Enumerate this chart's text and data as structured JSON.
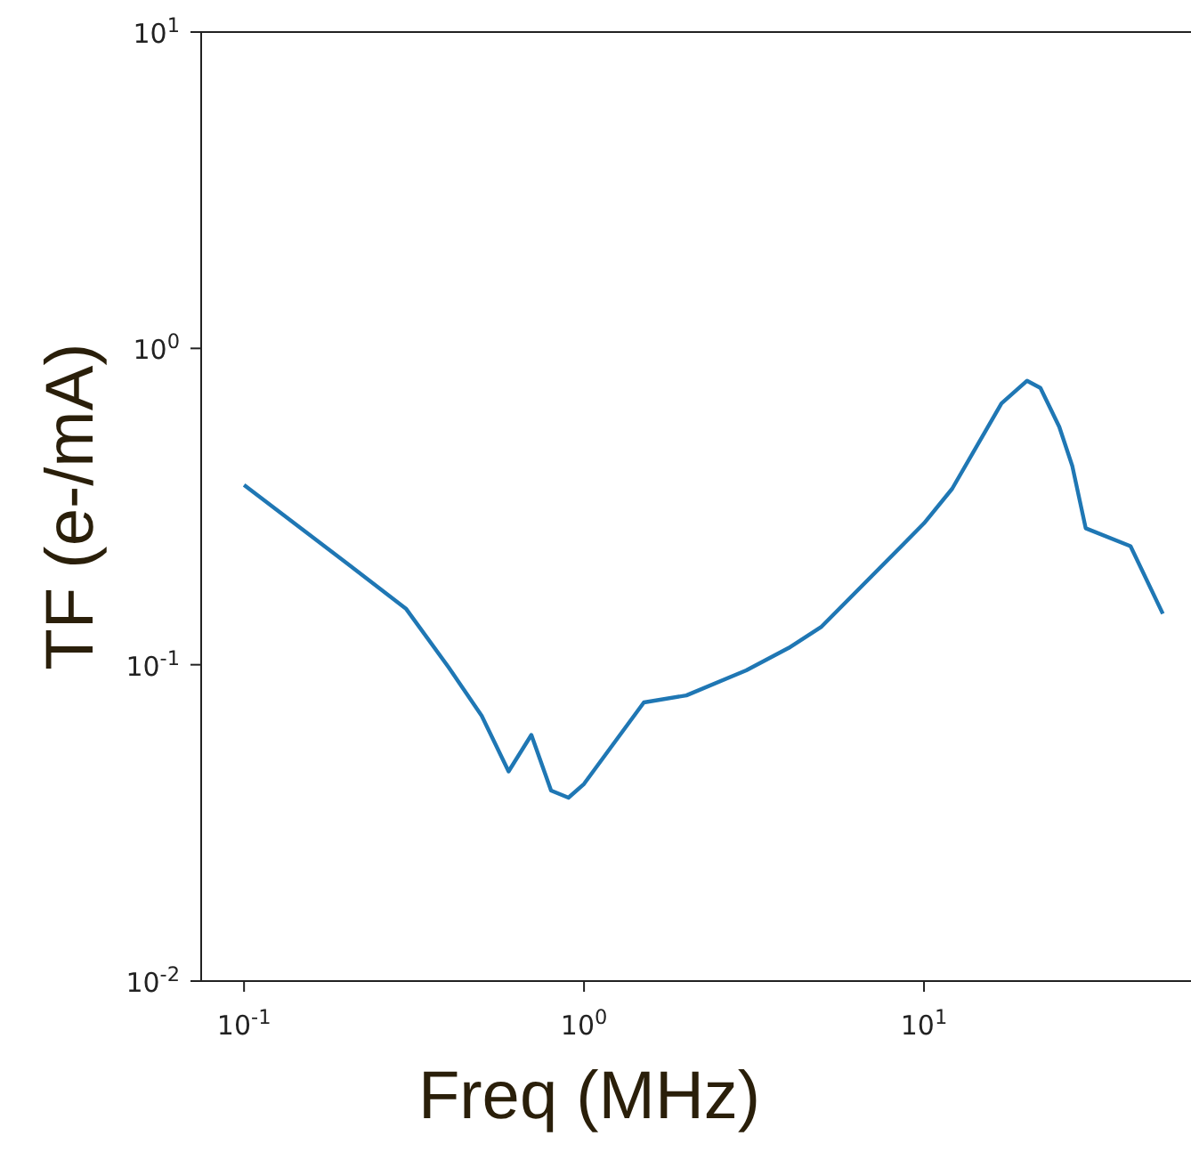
{
  "chart_data": {
    "type": "line",
    "xlabel": "Freq (MHz)",
    "ylabel": "TF (e-/mA)",
    "log": "xy",
    "grid": false,
    "marker": "none",
    "xlim": [
      0.0748,
      61
    ],
    "ylim": [
      0.01,
      10
    ],
    "xticks": [
      {
        "value": 0.1,
        "label": "10$^{-1}$"
      },
      {
        "value": 1,
        "label": "10$^{0}$"
      },
      {
        "value": 10,
        "label": "10$^{1}$"
      }
    ],
    "yticks": [
      {
        "value": 0.01,
        "label": "10$^{-2}$"
      },
      {
        "value": 0.1,
        "label": "10$^{-1}$"
      },
      {
        "value": 1,
        "label": "10$^{0}$"
      },
      {
        "value": 10,
        "label": "10$^{1}$"
      }
    ],
    "x": [
      0.1,
      0.2,
      0.3,
      0.4,
      0.5,
      0.6,
      0.7,
      0.8,
      0.9,
      1,
      1.5,
      2,
      3,
      4,
      5,
      10,
      12.1,
      16.9,
      20.1,
      22,
      25,
      27.3,
      29.9,
      40.5,
      50.4
    ],
    "series": [
      {
        "color": "#1f77b4",
        "values": [
          0.37,
          0.21,
          0.15,
          0.098,
          0.069,
          0.046,
          0.06,
          0.04,
          0.038,
          0.042,
          0.076,
          0.08,
          0.096,
          0.113,
          0.132,
          0.28,
          0.36,
          0.67,
          0.79,
          0.75,
          0.565,
          0.425,
          0.27,
          0.237,
          0.145
        ]
      }
    ]
  }
}
